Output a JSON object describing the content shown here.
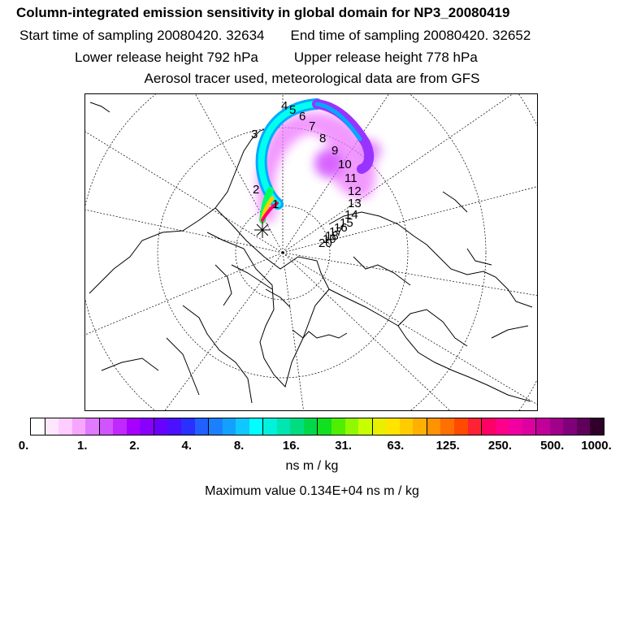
{
  "titles": {
    "main": "Column-integrated emission sensitivity in global domain for NP3_20080419",
    "start": "Start time of sampling 20080420. 32634",
    "end": "End time of sampling 20080420. 32652",
    "lower": "Lower release height  792 hPa",
    "upper": "Upper release height  778 hPa",
    "tracer": "Aerosol tracer used, meteorological data are from GFS"
  },
  "map": {
    "projection": "north-polar-stereographic",
    "release_marker": "asterisk",
    "plume_colors": [
      "#ff0066",
      "#ffcc00",
      "#00ff66",
      "#00ffee",
      "#00aaff",
      "#9933ff",
      "#cc33ff",
      "#ee77ff"
    ],
    "day_labels": [
      "1",
      "2",
      "3",
      "4",
      "5",
      "6",
      "7",
      "8",
      "9",
      "10",
      "11",
      "12",
      "13",
      "14",
      "15",
      "16",
      "17",
      "18",
      "19",
      "20"
    ]
  },
  "colorbar": {
    "colors": [
      "#ffffff",
      "#ffe6ff",
      "#ffccff",
      "#f7a6ff",
      "#e07aff",
      "#d055ff",
      "#c128ff",
      "#a800ff",
      "#8a00ff",
      "#6a00ff",
      "#4a10ff",
      "#2a30ff",
      "#2060ff",
      "#1a80ff",
      "#14a0ff",
      "#0ec8ff",
      "#00ffff",
      "#00f2dd",
      "#00e6b0",
      "#00dd80",
      "#00d84a",
      "#10e020",
      "#50ee00",
      "#90f800",
      "#c8ff00",
      "#e8f000",
      "#ffe400",
      "#ffcc00",
      "#ffb000",
      "#ff9200",
      "#ff7000",
      "#ff4a00",
      "#ff2233",
      "#ff0066",
      "#ff0088",
      "#f000a0",
      "#dd00a0",
      "#c00098",
      "#a0008a",
      "#80007a",
      "#60005a",
      "#30002a"
    ],
    "tick_labels": [
      "0.",
      "1.",
      "2.",
      "4.",
      "8.",
      "16.",
      "31.",
      "63.",
      "125.",
      "250.",
      "500.",
      "1000."
    ],
    "unit": "ns m / kg"
  },
  "maximum": "Maximum value  0.134E+04 ns m / kg"
}
